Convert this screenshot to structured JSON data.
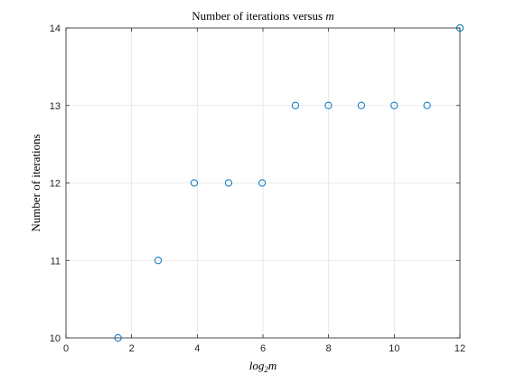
{
  "chart_data": {
    "type": "scatter",
    "title": {
      "prefix": "Number of iterations versus ",
      "variable": "m"
    },
    "xlabel": {
      "base": "log",
      "subscript": "2",
      "variable": "m"
    },
    "ylabel": "Number of iterations",
    "xlim": [
      0,
      12
    ],
    "ylim": [
      10,
      14
    ],
    "xticks": [
      0,
      2,
      4,
      6,
      8,
      10,
      12
    ],
    "yticks": [
      10,
      11,
      12,
      13,
      14
    ],
    "grid": true,
    "legend": "none",
    "marker": "open-circle",
    "color": "#0072BD",
    "x": [
      1.585,
      2.807,
      3.907,
      4.954,
      5.977,
      6.989,
      7.994,
      8.997,
      9.999,
      10.999,
      12
    ],
    "y": [
      10,
      11,
      12,
      12,
      12,
      13,
      13,
      13,
      13,
      13,
      14
    ]
  }
}
